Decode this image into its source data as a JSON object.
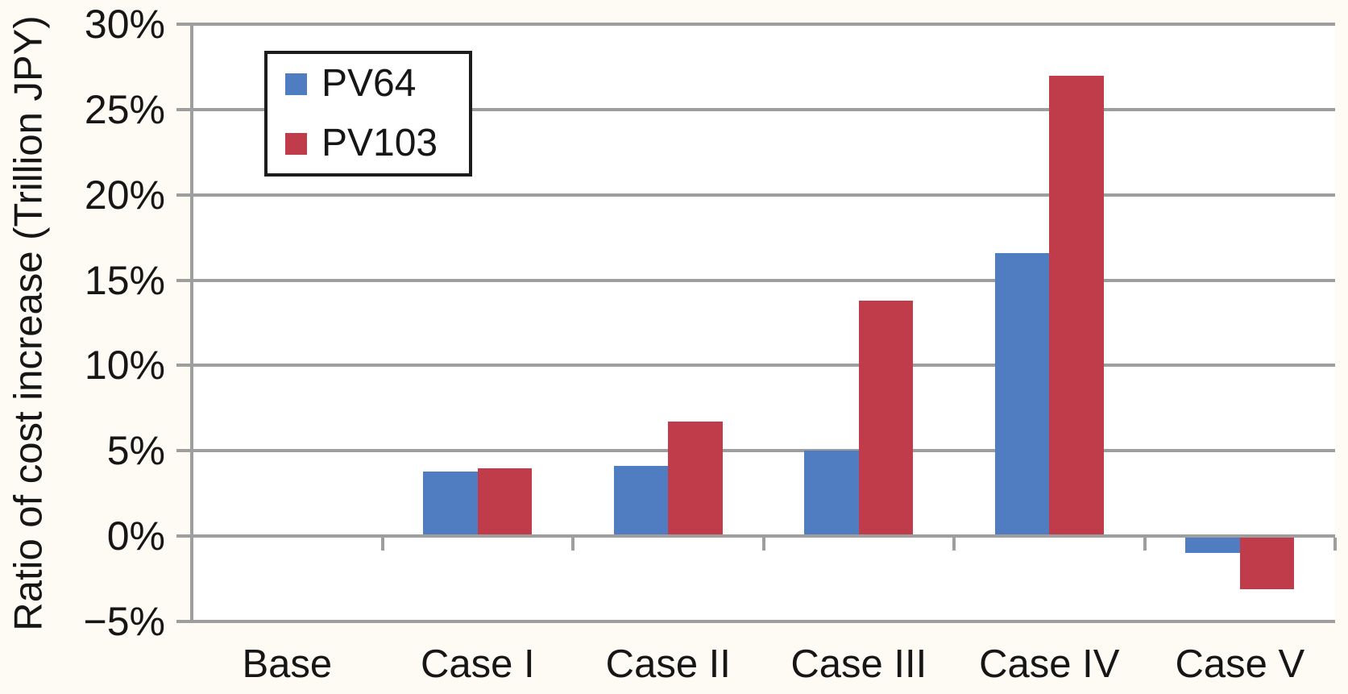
{
  "figure": {
    "background_color": "#fdfbf3",
    "plot_background_color": "#ffffff",
    "grid_color": "#9e9e9e",
    "text_color": "#161616",
    "legend_border_color": "#1c1c1c"
  },
  "chart_data": {
    "type": "bar",
    "title": "",
    "xlabel": "",
    "ylabel": "Ratio of cost increase (Trillion JPY)",
    "categories": [
      "Base",
      "Case I",
      "Case II",
      "Case III",
      "Case IV",
      "Case V"
    ],
    "series": [
      {
        "name": "PV64",
        "color": "#507cc1",
        "values": [
          0,
          3.8,
          4.1,
          5.0,
          16.6,
          -1.0
        ]
      },
      {
        "name": "PV103",
        "color": "#c03c4a",
        "values": [
          0,
          4.0,
          6.7,
          13.8,
          27.0,
          -3.1
        ]
      }
    ],
    "ylim": [
      -5,
      30
    ],
    "yticks": [
      30,
      25,
      20,
      15,
      10,
      5,
      0,
      -5
    ],
    "ytick_labels": [
      "30%",
      "25%",
      "20%",
      "15%",
      "10%",
      "5%",
      "0%",
      "−5%"
    ],
    "grid": true,
    "legend_position": "upper-left"
  }
}
